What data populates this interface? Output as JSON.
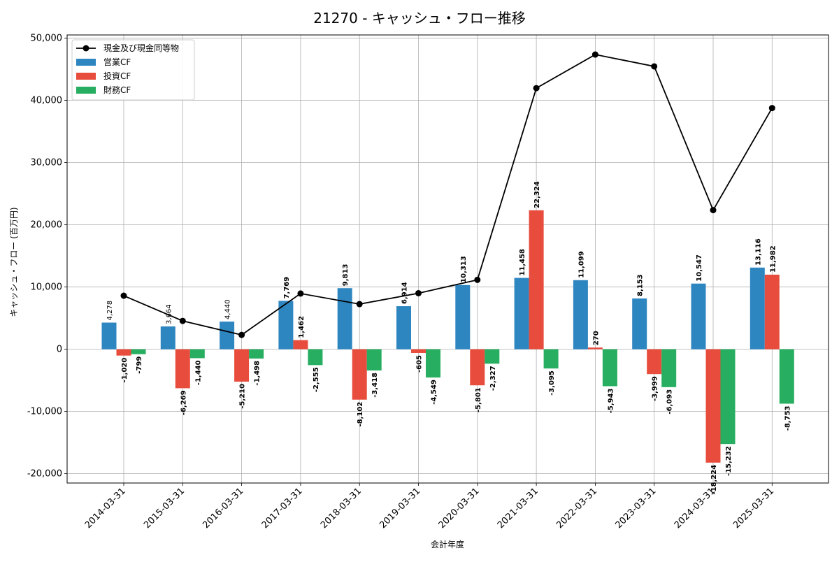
{
  "chart_data": {
    "type": "bar",
    "title": "21270 - キャッシュ・フロー推移",
    "xlabel": "会計年度",
    "ylabel": "キャッシュ・フロー (百万円)",
    "ylim": [
      -21500,
      50500
    ],
    "yticks": [
      -20000,
      -10000,
      0,
      10000,
      20000,
      30000,
      40000,
      50000
    ],
    "ytick_labels": [
      "-20,000",
      "-10,000",
      "0",
      "10,000",
      "20,000",
      "30,000",
      "40,000",
      "50,000"
    ],
    "grid": true,
    "legend_position": "top-left",
    "categories": [
      "2014-03-31",
      "2015-03-31",
      "2016-03-31",
      "2017-03-31",
      "2018-03-31",
      "2019-03-31",
      "2020-03-31",
      "2021-03-31",
      "2022-03-31",
      "2023-03-31",
      "2024-03-31",
      "2025-03-31"
    ],
    "series": [
      {
        "name": "営業CF",
        "type": "bar",
        "color": "#2e86c1",
        "values": [
          4278,
          3664,
          4440,
          7769,
          9813,
          6914,
          10313,
          11458,
          11099,
          8153,
          10547,
          13116
        ],
        "labels": [
          "4,278",
          "3,664",
          "4,440",
          "7,769",
          "9,813",
          "6,914",
          "10,313",
          "11,458",
          "11,099",
          "8,153",
          "10,547",
          "13,116"
        ]
      },
      {
        "name": "投資CF",
        "type": "bar",
        "color": "#e74c3c",
        "values": [
          -1020,
          -6269,
          -5210,
          1462,
          -8102,
          -605,
          -5801,
          22324,
          270,
          -3999,
          -18224,
          11982
        ],
        "labels": [
          "-1,020",
          "-6,269",
          "-5,210",
          "1,462",
          "-8,102",
          "-605",
          "-5,801",
          "22,324",
          "270",
          "-3,999",
          "-18,224",
          "11,982"
        ]
      },
      {
        "name": "財務CF",
        "type": "bar",
        "color": "#27ae60",
        "values": [
          -799,
          -1440,
          -1498,
          -2555,
          -3418,
          -4549,
          -2327,
          -3095,
          -5943,
          -6093,
          -15232,
          -8753
        ],
        "labels": [
          "-799",
          "-1,440",
          "-1,498",
          "-2,555",
          "-3,418",
          "-4,549",
          "-2,327",
          "-3,095",
          "-5,943",
          "-6,093",
          "-15,232",
          "-8,753"
        ]
      },
      {
        "name": "現金及び現金同等物",
        "type": "line",
        "color": "#000000",
        "values": [
          8600,
          4550,
          2300,
          8950,
          7250,
          9000,
          11150,
          41950,
          47350,
          45450,
          22350,
          38750
        ]
      }
    ]
  }
}
